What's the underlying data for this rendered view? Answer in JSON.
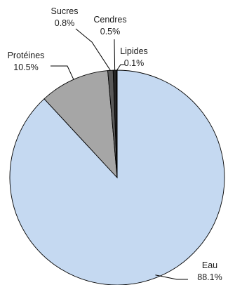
{
  "chart_data": {
    "type": "pie",
    "title": "",
    "legend": "none",
    "slices": [
      {
        "label": "Eau",
        "value": 88.1,
        "value_label": "88.1%",
        "color": "#c5d9f1"
      },
      {
        "label": "Protéines",
        "value": 10.5,
        "value_label": "10.5%",
        "color": "#a6a6a6"
      },
      {
        "label": "Sucres",
        "value": 0.8,
        "value_label": "0.8%",
        "color": "#595959"
      },
      {
        "label": "Cendres",
        "value": 0.5,
        "value_label": "0.5%",
        "color": "#262626"
      },
      {
        "label": "Lipides",
        "value": 0.1,
        "value_label": "0.1%",
        "color": "#8c8c8c"
      }
    ]
  }
}
